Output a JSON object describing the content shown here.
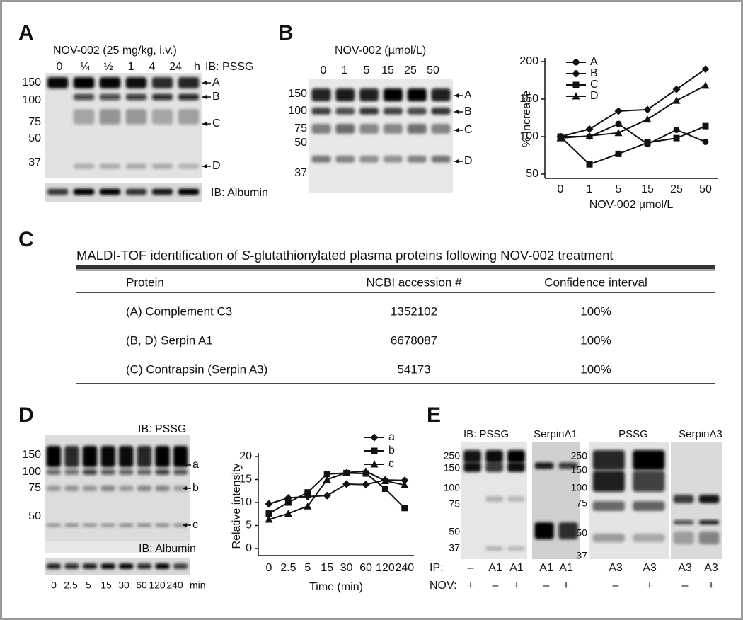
{
  "panel_a": {
    "label": "A",
    "treatment": "NOV-002 (25 mg/kg, i.v.)",
    "lanes": [
      "0",
      "¼",
      "½",
      "1",
      "4",
      "24"
    ],
    "lane_unit": "h",
    "ib_top": "IB: PSSG",
    "ib_bottom": "IB: Albumin",
    "markers": [
      "150",
      "100",
      "75",
      "50",
      "37"
    ],
    "bands": [
      "A",
      "B",
      "C",
      "D"
    ]
  },
  "panel_b": {
    "label": "B",
    "treatment": "NOV-002 (µmol/L)",
    "lanes": [
      "0",
      "1",
      "5",
      "15",
      "25",
      "50"
    ],
    "markers": [
      "150",
      "100",
      "75",
      "50",
      "37"
    ],
    "bands": [
      "A",
      "B",
      "C",
      "D"
    ]
  },
  "panel_c": {
    "label": "C",
    "title": [
      "MALDI-TOF identification of ",
      "S",
      "-glutathionylated plasma proteins following NOV-002 treatment"
    ],
    "table": {
      "header": [
        "Protein",
        "NCBI accession #",
        "Confidence interval"
      ],
      "rows": [
        [
          "(A) Complement C3",
          "1352102",
          "100%"
        ],
        [
          "(B, D) Serpin A1",
          "6678087",
          "100%"
        ],
        [
          "(C) Contrapsin (Serpin A3)",
          "54173",
          "100%"
        ]
      ]
    }
  },
  "panel_d": {
    "label": "D",
    "ib_top": "IB: PSSG",
    "ib_bottom": "IB: Albumin",
    "markers": [
      "150",
      "100",
      "75",
      "50"
    ],
    "bands": [
      "a",
      "b",
      "c"
    ],
    "lanes": [
      "0",
      "2.5",
      "5",
      "15",
      "30",
      "60",
      "120",
      "240"
    ],
    "lane_unit": "min"
  },
  "panel_e": {
    "label": "E",
    "ib": "IB: PSSG",
    "blots": [
      "SerpinA1",
      "PSSG",
      "SerpinA3"
    ],
    "markers_left": [
      "250",
      "150",
      "100",
      "75",
      "50",
      "37"
    ],
    "markers_right": [
      "250",
      "150",
      "100",
      "75",
      "50",
      "37"
    ],
    "ip_label": "IP:",
    "nov_label": "NOV:",
    "ip_left": [
      "–",
      "A1",
      "A1",
      "A1",
      "A1"
    ],
    "nov_left": [
      "+",
      "–",
      "+",
      "–",
      "+"
    ],
    "ip_right": [
      "A3",
      "A3",
      "A3",
      "A3"
    ],
    "nov_right": [
      "–",
      "+",
      "–",
      "+"
    ]
  },
  "chart_data": [
    {
      "type": "line",
      "xlabel": "NOV-002 µmol/L",
      "ylabel": "% Increase",
      "categories": [
        "0",
        "1",
        "5",
        "15",
        "25",
        "50"
      ],
      "ylim": [
        50,
        200
      ],
      "yticks": [
        50,
        100,
        150,
        200
      ],
      "legend": "upper left",
      "series": [
        {
          "name": "A",
          "color": "#111111",
          "marker": "circle",
          "values": [
            100,
            100,
            117,
            90,
            109,
            93
          ]
        },
        {
          "name": "B",
          "color": "#111111",
          "marker": "diamond",
          "values": [
            100,
            110,
            134,
            136,
            163,
            190
          ]
        },
        {
          "name": "C",
          "color": "#111111",
          "marker": "square",
          "values": [
            100,
            63,
            77,
            92,
            98,
            114
          ]
        },
        {
          "name": "D",
          "color": "#111111",
          "marker": "triangle",
          "values": [
            98,
            101,
            105,
            123,
            148,
            168
          ]
        }
      ]
    },
    {
      "type": "line",
      "xlabel": "Time (min)",
      "ylabel": "Relative intensity",
      "categories": [
        "0",
        "2.5",
        "5",
        "15",
        "30",
        "60",
        "120",
        "240"
      ],
      "ylim": [
        0,
        20
      ],
      "yticks": [
        0,
        5,
        10,
        15,
        20
      ],
      "legend": "upper right",
      "series": [
        {
          "name": "a",
          "color": "#111111",
          "marker": "diamond",
          "values": [
            9.7,
            11,
            11.3,
            11.5,
            14,
            13.9,
            14.9,
            14.8
          ]
        },
        {
          "name": "b",
          "color": "#111111",
          "marker": "square",
          "values": [
            7.6,
            10,
            12.2,
            16.2,
            16.4,
            16.3,
            13,
            8.8
          ]
        },
        {
          "name": "c",
          "color": "#111111",
          "marker": "triangle",
          "values": [
            6.3,
            7.6,
            9.2,
            15,
            16.5,
            16.8,
            14.7,
            13.8
          ]
        }
      ]
    }
  ]
}
